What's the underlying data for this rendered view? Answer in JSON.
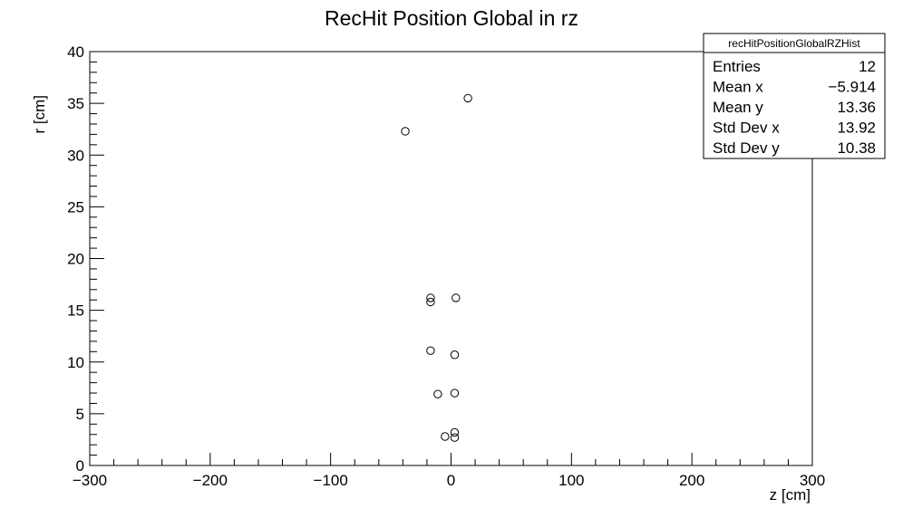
{
  "chart_data": {
    "type": "scatter",
    "title": "RecHit Position Global in rz",
    "xlabel": "z [cm]",
    "ylabel": "r [cm]",
    "xlim": [
      -300,
      300
    ],
    "ylim": [
      0,
      40
    ],
    "x_ticks": [
      -300,
      -200,
      -100,
      0,
      100,
      200,
      300
    ],
    "x_tick_labels": [
      "−300",
      "−200",
      "−100",
      "0",
      "100",
      "200",
      "300"
    ],
    "y_ticks": [
      0,
      5,
      10,
      15,
      20,
      25,
      30,
      35,
      40
    ],
    "y_tick_labels": [
      "0",
      "5",
      "10",
      "15",
      "20",
      "25",
      "30",
      "35",
      "40"
    ],
    "grid": false,
    "legend": "none",
    "marker": "open-circle",
    "points": [
      {
        "x": 14,
        "y": 35.5
      },
      {
        "x": -38,
        "y": 32.3
      },
      {
        "x": -17,
        "y": 16.2
      },
      {
        "x": -17,
        "y": 15.8
      },
      {
        "x": 4,
        "y": 16.2
      },
      {
        "x": -17,
        "y": 11.1
      },
      {
        "x": 3,
        "y": 10.7
      },
      {
        "x": -11,
        "y": 6.9
      },
      {
        "x": 3,
        "y": 7.0
      },
      {
        "x": 3,
        "y": 3.2
      },
      {
        "x": -5,
        "y": 2.8
      },
      {
        "x": 3,
        "y": 2.7
      }
    ],
    "stats_box": {
      "name": "recHitPositionGlobalRZHist",
      "rows": [
        {
          "label": "Entries",
          "value": "12"
        },
        {
          "label": "Mean x",
          "value": "−5.914"
        },
        {
          "label": "Mean y",
          "value": "13.36"
        },
        {
          "label": "Std Dev x",
          "value": "13.92"
        },
        {
          "label": "Std Dev y",
          "value": "10.38"
        }
      ]
    }
  }
}
